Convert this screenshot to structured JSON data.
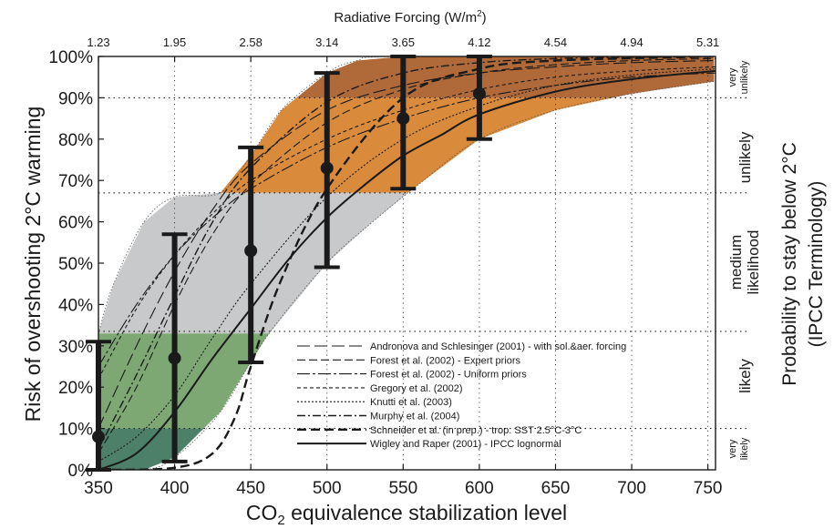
{
  "chart_data": {
    "type": "line",
    "top_axis_title": "Radiative Forcing (W/m",
    "top_axis_title_sup": "2",
    "top_axis_title_end": ")",
    "top_ticks": [
      {
        "x": 350,
        "label": "1.23"
      },
      {
        "x": 400,
        "label": "1.95"
      },
      {
        "x": 450,
        "label": "2.58"
      },
      {
        "x": 500,
        "label": "3.14"
      },
      {
        "x": 550,
        "label": "3.65"
      },
      {
        "x": 600,
        "label": "4.12"
      },
      {
        "x": 650,
        "label": "4.54"
      },
      {
        "x": 700,
        "label": "4.94"
      },
      {
        "x": 750,
        "label": "5.31"
      }
    ],
    "xlabel_pre": "CO",
    "xlabel_sub": "2",
    "xlabel_post": " equivalence stabilization level",
    "ylabel_left": "Risk of overshooting 2°C warming",
    "ylabel_right_1": "Probability to stay below 2°C",
    "ylabel_right_2": "(IPCC Terminology)",
    "xlim": [
      350,
      755
    ],
    "ylim": [
      0,
      100
    ],
    "x_ticks": [
      350,
      400,
      450,
      500,
      550,
      600,
      650,
      700,
      750
    ],
    "x_tick_labels": [
      "350",
      "400",
      "450",
      "500",
      "550",
      "600",
      "650",
      "700",
      "750"
    ],
    "y_ticks": [
      0,
      10,
      20,
      30,
      40,
      50,
      60,
      70,
      80,
      90,
      100
    ],
    "y_tick_labels": [
      "0%",
      "10%",
      "20%",
      "30%",
      "40%",
      "50%",
      "60%",
      "70%",
      "80%",
      "90%",
      "100%"
    ],
    "bands": [
      {
        "label": "very unlikely",
        "from": 90,
        "to": 100,
        "color": "#b06a3a"
      },
      {
        "label": "unlikely",
        "from": 67,
        "to": 90,
        "color": "#d98a3a"
      },
      {
        "label": "medium likelihood",
        "from": 33,
        "to": 67,
        "color": "#c8c9cb"
      },
      {
        "label": "likely",
        "from": 10,
        "to": 33,
        "color": "#7da873"
      },
      {
        "label": "very likely",
        "from": 0,
        "to": 10,
        "color": "#4c8069"
      }
    ],
    "band_labels": {
      "very_unlikely": [
        "very",
        "unlikely"
      ],
      "unlikely": "unlikely",
      "medium": [
        "medium",
        "likelihood"
      ],
      "likely": "likely",
      "very_likely": [
        "very",
        "likely"
      ]
    },
    "envelope_upper": [
      [
        350,
        33
      ],
      [
        360,
        45
      ],
      [
        380,
        60
      ],
      [
        400,
        66
      ],
      [
        430,
        67
      ],
      [
        450,
        76
      ],
      [
        470,
        87
      ],
      [
        500,
        96
      ],
      [
        520,
        99
      ],
      [
        550,
        100
      ],
      [
        755,
        100
      ]
    ],
    "envelope_lower": [
      [
        350,
        0
      ],
      [
        380,
        0
      ],
      [
        400,
        3
      ],
      [
        430,
        14
      ],
      [
        460,
        32
      ],
      [
        500,
        50
      ],
      [
        530,
        60
      ],
      [
        560,
        69
      ],
      [
        600,
        80
      ],
      [
        650,
        87
      ],
      [
        700,
        91
      ],
      [
        755,
        94
      ]
    ],
    "series": [
      {
        "name": "Andronova and Schlesinger (2001) - with sol.&aer. forcing",
        "dash": "14,5",
        "width": 1.1,
        "points": [
          [
            350,
            10
          ],
          [
            375,
            30
          ],
          [
            400,
            48
          ],
          [
            425,
            63
          ],
          [
            450,
            74
          ],
          [
            500,
            87
          ],
          [
            550,
            93
          ],
          [
            600,
            96
          ],
          [
            650,
            97.5
          ],
          [
            700,
            98.5
          ],
          [
            755,
            99
          ]
        ]
      },
      {
        "name": "Forest et al. (2002) - Expert priors",
        "dash": "9,4",
        "width": 1.1,
        "points": [
          [
            350,
            4
          ],
          [
            375,
            20
          ],
          [
            400,
            40
          ],
          [
            425,
            57
          ],
          [
            450,
            69
          ],
          [
            500,
            84
          ],
          [
            550,
            92
          ],
          [
            600,
            96
          ],
          [
            650,
            98
          ],
          [
            700,
            99
          ],
          [
            755,
            99.5
          ]
        ]
      },
      {
        "name": "Forest et al. (2002) - Uniform priors",
        "dash": "14,3,3,3",
        "width": 1.1,
        "points": [
          [
            350,
            25
          ],
          [
            375,
            40
          ],
          [
            400,
            52
          ],
          [
            425,
            61
          ],
          [
            450,
            68
          ],
          [
            500,
            78
          ],
          [
            550,
            85
          ],
          [
            600,
            90
          ],
          [
            650,
            93
          ],
          [
            700,
            95
          ],
          [
            755,
            96
          ]
        ]
      },
      {
        "name": "Gregory et al. (2002)",
        "dash": "4,3",
        "width": 1.1,
        "points": [
          [
            350,
            22
          ],
          [
            375,
            39
          ],
          [
            400,
            52
          ],
          [
            425,
            62
          ],
          [
            450,
            70
          ],
          [
            500,
            80
          ],
          [
            550,
            87
          ],
          [
            600,
            92
          ],
          [
            650,
            95
          ],
          [
            700,
            96.5
          ],
          [
            755,
            97.5
          ]
        ]
      },
      {
        "name": "Knutti et al. (2003)",
        "dash": "2,2",
        "width": 1.1,
        "points": [
          [
            350,
            2
          ],
          [
            375,
            8
          ],
          [
            400,
            18
          ],
          [
            425,
            32
          ],
          [
            450,
            45
          ],
          [
            500,
            66
          ],
          [
            550,
            80
          ],
          [
            600,
            88
          ],
          [
            650,
            93
          ],
          [
            700,
            95.5
          ],
          [
            755,
            97
          ]
        ]
      },
      {
        "name": "Murphy et al. (2004)",
        "dash": "9,3,2,3",
        "width": 1.4,
        "points": [
          [
            350,
            5
          ],
          [
            375,
            23
          ],
          [
            400,
            42
          ],
          [
            425,
            60
          ],
          [
            450,
            73
          ],
          [
            500,
            89
          ],
          [
            550,
            96
          ],
          [
            600,
            98.5
          ],
          [
            650,
            99.5
          ],
          [
            700,
            99.8
          ],
          [
            755,
            100
          ]
        ]
      },
      {
        "name": "Schneider et al. (in prep.) - trop. SST 2.5°C-3°C",
        "dash": "10,5",
        "width": 2.4,
        "points": [
          [
            350,
            0
          ],
          [
            400,
            0.5
          ],
          [
            425,
            4
          ],
          [
            440,
            13
          ],
          [
            450,
            25
          ],
          [
            470,
            46
          ],
          [
            500,
            68
          ],
          [
            550,
            90
          ],
          [
            600,
            97
          ],
          [
            650,
            99
          ],
          [
            755,
            100
          ]
        ]
      },
      {
        "name": "Wigley and Raper (2001) - IPCC lognormal",
        "dash": "",
        "width": 2.0,
        "points": [
          [
            350,
            0
          ],
          [
            375,
            4
          ],
          [
            400,
            14
          ],
          [
            425,
            27
          ],
          [
            450,
            39
          ],
          [
            475,
            51
          ],
          [
            500,
            61
          ],
          [
            525,
            69
          ],
          [
            550,
            76
          ],
          [
            575,
            81
          ],
          [
            600,
            86
          ],
          [
            650,
            91.5
          ],
          [
            700,
            94.5
          ],
          [
            755,
            96.5
          ]
        ]
      }
    ],
    "error_bars": [
      {
        "x": 350,
        "y": 8,
        "low": 0,
        "high": 31
      },
      {
        "x": 400,
        "y": 27,
        "low": 2,
        "high": 57
      },
      {
        "x": 450,
        "y": 53,
        "low": 26,
        "high": 78
      },
      {
        "x": 500,
        "y": 73,
        "low": 49,
        "high": 96
      },
      {
        "x": 550,
        "y": 85,
        "low": 68,
        "high": 100
      },
      {
        "x": 600,
        "y": 91,
        "low": 80,
        "high": 100
      }
    ],
    "dotted_gridlines": {
      "horizontal": [
        10,
        33.5,
        67,
        90
      ],
      "vertical": [
        350,
        400,
        450,
        500,
        550,
        600,
        650,
        700,
        750
      ]
    },
    "colors": {
      "curve": "#1a1a1a",
      "errorbar": "#1a1a1a"
    }
  }
}
